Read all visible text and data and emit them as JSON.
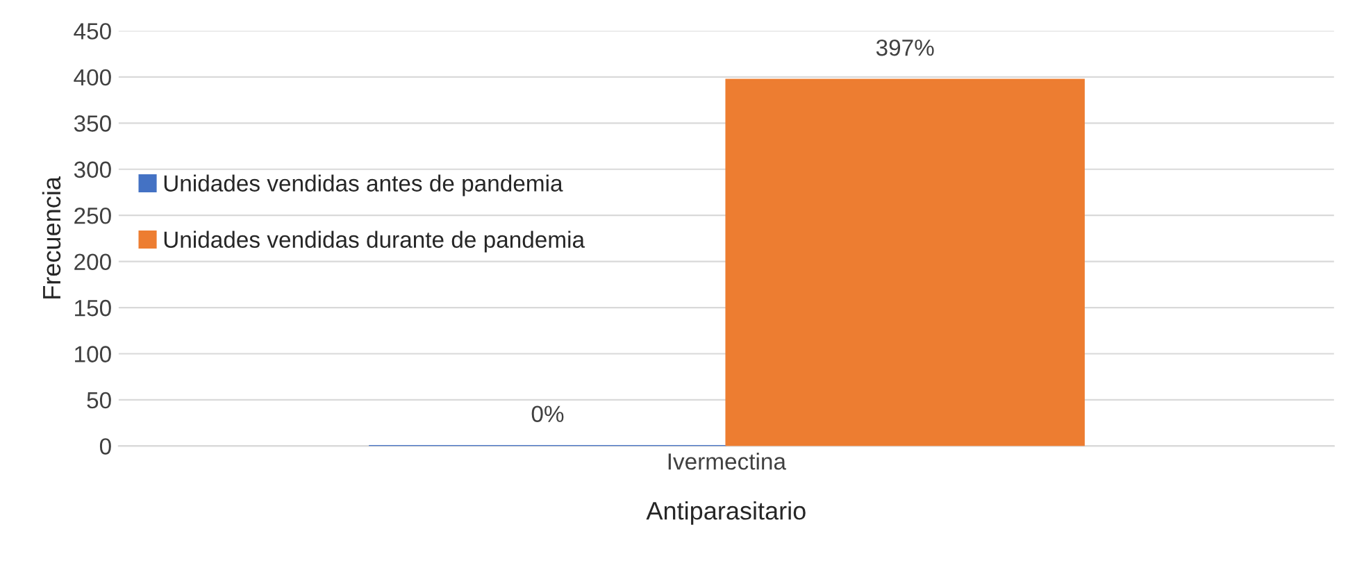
{
  "chart_data": {
    "type": "bar",
    "xlabel": "Antiparasitario",
    "ylabel": "Frecuencia",
    "categories": [
      "Ivermectina"
    ],
    "series": [
      {
        "name": "Unidades vendidas antes de pandemia",
        "color": "#4472c4",
        "values": [
          0
        ],
        "value_labels": [
          "0%"
        ]
      },
      {
        "name": "Unidades vendidas durante de pandemia",
        "color": "#ed7d31",
        "values": [
          397
        ],
        "value_labels": [
          "397%"
        ]
      }
    ],
    "ylim": [
      0,
      450
    ],
    "yticks": [
      0,
      50,
      100,
      150,
      200,
      250,
      300,
      350,
      400,
      450
    ],
    "grid": "y",
    "legend": "left"
  }
}
